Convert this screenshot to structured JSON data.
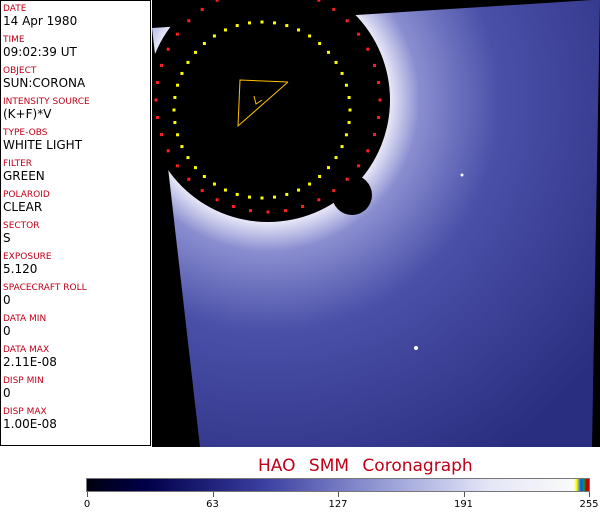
{
  "fields": [
    {
      "label": "DATE",
      "value": "14 Apr 1980"
    },
    {
      "label": "TIME",
      "value": "09:02:39 UT"
    },
    {
      "label": "OBJECT",
      "value": "SUN:CORONA"
    },
    {
      "label": "INTENSITY SOURCE",
      "value": "(K+F)*V"
    },
    {
      "label": "TYPE-OBS",
      "value": "WHITE LIGHT"
    },
    {
      "label": "FILTER",
      "value": "GREEN"
    },
    {
      "label": "POLAROID",
      "value": "CLEAR"
    },
    {
      "label": "SECTOR",
      "value": "S"
    },
    {
      "label": "EXPOSURE",
      "value": "5.120"
    },
    {
      "label": "SPACECRAFT ROLL",
      "value": "0"
    },
    {
      "label": "DATA MIN",
      "value": "0"
    },
    {
      "label": "DATA MAX",
      "value": "2.11E-08"
    },
    {
      "label": "DISP MIN",
      "value": "0"
    },
    {
      "label": "DISP MAX",
      "value": "1.00E-08"
    }
  ],
  "title": "HAO  SMM Coronagraph",
  "colorbar": {
    "ticks": [
      "0",
      "63",
      "127",
      "191",
      "255"
    ],
    "colors": {
      "low": "#000010",
      "mid": "#3a3ea0",
      "high": "#fafafa",
      "accent": "#c00018"
    }
  }
}
